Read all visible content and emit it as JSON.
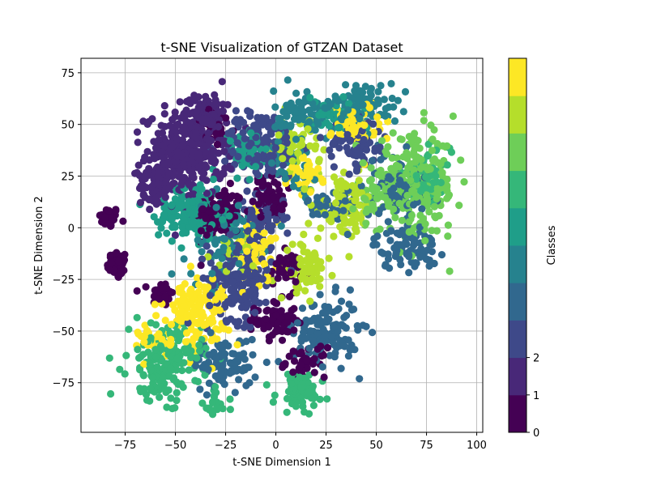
{
  "chart_data": {
    "type": "scatter",
    "title": "t-SNE Visualization of GTZAN Dataset",
    "xlabel": "t-SNE Dimension 1",
    "ylabel": "t-SNE Dimension 2",
    "xlim": [
      -97,
      103
    ],
    "ylim": [
      -99,
      82
    ],
    "x_ticks": [
      -75,
      -50,
      -25,
      0,
      25,
      50,
      75,
      100
    ],
    "y_ticks": [
      -75,
      -50,
      -25,
      0,
      25,
      50,
      75
    ],
    "x_tick_labels": [
      "−75",
      "−50",
      "−25",
      "0",
      "25",
      "50",
      "75",
      "100"
    ],
    "y_tick_labels": [
      "−75",
      "−50",
      "−25",
      "0",
      "25",
      "50",
      "75"
    ],
    "grid": true,
    "colormap": "viridis",
    "colors": [
      "#440154",
      "#482878",
      "#3e4989",
      "#31688e",
      "#26828e",
      "#1f9e89",
      "#35b779",
      "#6ece58",
      "#b5de2b",
      "#fde725"
    ],
    "colorbar": {
      "label": "Classes",
      "range": [
        0,
        10
      ],
      "ticks": [
        0,
        1,
        2
      ],
      "tick_labels": [
        "0",
        "1",
        "2"
      ]
    },
    "clusters": [
      {
        "class": 0,
        "cx": -83,
        "cy": 5,
        "sx": 2.5,
        "sy": 2.5,
        "n": 40
      },
      {
        "class": 0,
        "cx": -79,
        "cy": -18,
        "sx": 2.5,
        "sy": 3.5,
        "n": 40
      },
      {
        "class": 0,
        "cx": -57,
        "cy": -32,
        "sx": 3,
        "sy": 3,
        "n": 35
      },
      {
        "class": 0,
        "cx": -28,
        "cy": 7,
        "sx": 6,
        "sy": 6,
        "n": 110
      },
      {
        "class": 0,
        "cx": 0,
        "cy": -45,
        "sx": 5,
        "sy": 5,
        "n": 75
      },
      {
        "class": 0,
        "cx": -3,
        "cy": 15,
        "sx": 4,
        "sy": 5,
        "n": 60
      },
      {
        "class": 0,
        "cx": 5,
        "cy": -20,
        "sx": 4,
        "sy": 4,
        "n": 50
      },
      {
        "class": 0,
        "cx": 15,
        "cy": -65,
        "sx": 5,
        "sy": 3.5,
        "n": 45
      },
      {
        "class": 0,
        "cx": -30,
        "cy": 48,
        "sx": 5,
        "sy": 5,
        "n": 30
      },
      {
        "class": 1,
        "cx": -45,
        "cy": 35,
        "sx": 10,
        "sy": 10,
        "n": 320
      },
      {
        "class": 1,
        "cx": -35,
        "cy": 57,
        "sx": 5,
        "sy": 4,
        "n": 90
      },
      {
        "class": 1,
        "cx": -60,
        "cy": 20,
        "sx": 4,
        "sy": 5,
        "n": 60
      },
      {
        "class": 2,
        "cx": -8,
        "cy": 40,
        "sx": 10,
        "sy": 8,
        "n": 170
      },
      {
        "class": 2,
        "cx": -18,
        "cy": -25,
        "sx": 8,
        "sy": 10,
        "n": 170
      },
      {
        "class": 2,
        "cx": -8,
        "cy": 5,
        "sx": 6,
        "sy": 6,
        "n": 70
      },
      {
        "class": 2,
        "cx": 40,
        "cy": 40,
        "sx": 8,
        "sy": 6,
        "n": 80
      },
      {
        "class": 3,
        "cx": 25,
        "cy": -50,
        "sx": 8,
        "sy": 8,
        "n": 130
      },
      {
        "class": 3,
        "cx": -25,
        "cy": -65,
        "sx": 8,
        "sy": 6,
        "n": 90
      },
      {
        "class": 3,
        "cx": 60,
        "cy": 20,
        "sx": 8,
        "sy": 8,
        "n": 90
      },
      {
        "class": 3,
        "cx": 65,
        "cy": -10,
        "sx": 8,
        "sy": 5,
        "n": 80
      },
      {
        "class": 3,
        "cx": 28,
        "cy": 10,
        "sx": 6,
        "sy": 5,
        "n": 50
      },
      {
        "class": 4,
        "cx": 15,
        "cy": 55,
        "sx": 8,
        "sy": 6,
        "n": 90
      },
      {
        "class": 4,
        "cx": 45,
        "cy": 60,
        "sx": 8,
        "sy": 5,
        "n": 80
      },
      {
        "class": 4,
        "cx": -25,
        "cy": -5,
        "sx": 10,
        "sy": 10,
        "n": 90
      },
      {
        "class": 4,
        "cx": 8,
        "cy": 30,
        "sx": 6,
        "sy": 6,
        "n": 40
      },
      {
        "class": 5,
        "cx": -42,
        "cy": 8,
        "sx": 8,
        "sy": 7,
        "n": 160
      },
      {
        "class": 5,
        "cx": -15,
        "cy": 35,
        "sx": 6,
        "sy": 6,
        "n": 50
      },
      {
        "class": 5,
        "cx": 30,
        "cy": 55,
        "sx": 6,
        "sy": 5,
        "n": 40
      },
      {
        "class": 6,
        "cx": -55,
        "cy": -65,
        "sx": 9,
        "sy": 9,
        "n": 180
      },
      {
        "class": 6,
        "cx": 12,
        "cy": -80,
        "sx": 6,
        "sy": 5,
        "n": 80
      },
      {
        "class": 6,
        "cx": -30,
        "cy": -85,
        "sx": 3,
        "sy": 4,
        "n": 20
      },
      {
        "class": 6,
        "cx": 75,
        "cy": 25,
        "sx": 6,
        "sy": 6,
        "n": 60
      },
      {
        "class": 7,
        "cx": 70,
        "cy": 20,
        "sx": 10,
        "sy": 12,
        "n": 230
      },
      {
        "class": 7,
        "cx": 50,
        "cy": 15,
        "sx": 5,
        "sy": 6,
        "n": 50
      },
      {
        "class": 8,
        "cx": 35,
        "cy": 10,
        "sx": 7,
        "sy": 7,
        "n": 100
      },
      {
        "class": 8,
        "cx": 15,
        "cy": -20,
        "sx": 5,
        "sy": 6,
        "n": 70
      },
      {
        "class": 8,
        "cx": 10,
        "cy": 40,
        "sx": 6,
        "sy": 6,
        "n": 50
      },
      {
        "class": 8,
        "cx": -20,
        "cy": -10,
        "sx": 5,
        "sy": 5,
        "n": 30
      },
      {
        "class": 9,
        "cx": -40,
        "cy": -40,
        "sx": 8,
        "sy": 8,
        "n": 140
      },
      {
        "class": 9,
        "cx": 40,
        "cy": 50,
        "sx": 6,
        "sy": 6,
        "n": 70
      },
      {
        "class": 9,
        "cx": -10,
        "cy": -10,
        "sx": 5,
        "sy": 8,
        "n": 60
      },
      {
        "class": 9,
        "cx": 15,
        "cy": 25,
        "sx": 5,
        "sy": 5,
        "n": 40
      },
      {
        "class": 9,
        "cx": -60,
        "cy": -55,
        "sx": 4,
        "sy": 4,
        "n": 30
      }
    ]
  }
}
